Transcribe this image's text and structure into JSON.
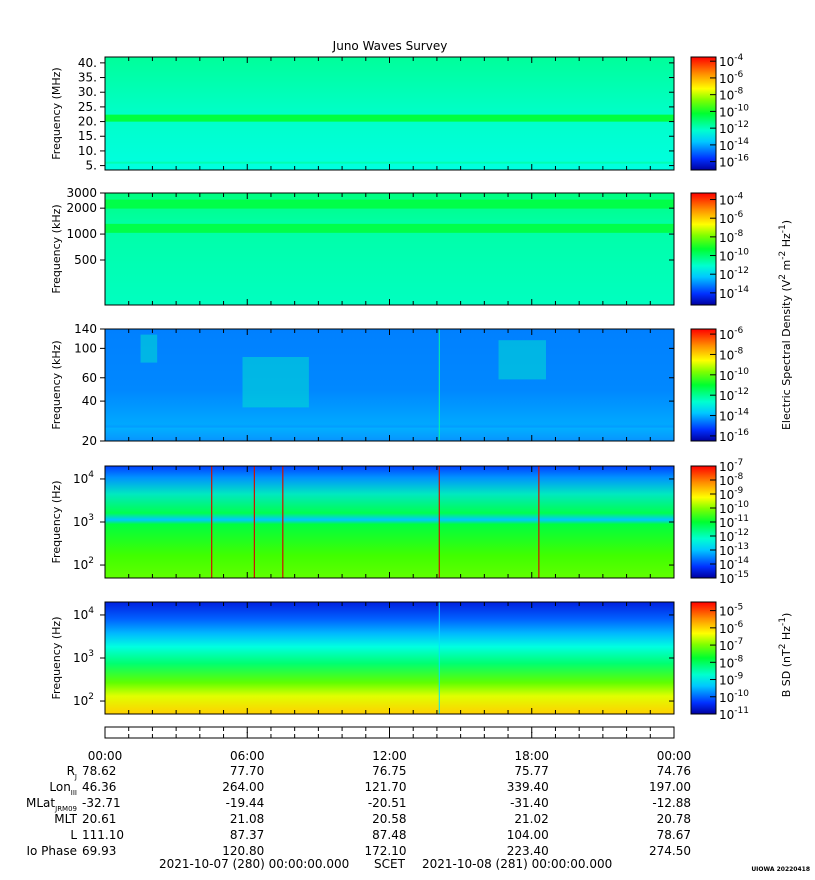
{
  "title": "Juno Waves Survey",
  "credit": "UIOWA 20220418",
  "chart_data": [
    {
      "type": "heatmap",
      "panel": "edens-high",
      "ylabel": "Frequency (MHz)",
      "yscale": "linear",
      "ylim": [
        3.5,
        42
      ],
      "yticks": [
        "40.",
        "35.",
        "30.",
        "25.",
        "20.",
        "15.",
        "10.",
        "5."
      ],
      "ytick_values": [
        40,
        35,
        30,
        25,
        20,
        15,
        10,
        5
      ],
      "colorbar_ticks": [
        "10-4",
        "10-6",
        "10-8",
        "10-10",
        "10-12",
        "10-14",
        "10-16"
      ],
      "colorbar_exponents": [
        -4,
        -6,
        -8,
        -10,
        -12,
        -14,
        -16
      ],
      "colorbar_range": [
        -17,
        -3.5
      ],
      "features": "uniform background near 10-13 with a band near 21 MHz near 10-11"
    },
    {
      "type": "heatmap",
      "panel": "edens-mid",
      "ylabel": "Frequency (kHz)",
      "yscale": "log",
      "ylim": [
        150,
        3000
      ],
      "yticks": [
        "3000",
        "2000",
        "1000",
        "500"
      ],
      "ytick_values": [
        3000,
        2000,
        1000,
        500
      ],
      "colorbar_ticks": [
        "10-4",
        "10-6",
        "10-8",
        "10-10",
        "10-12",
        "10-14"
      ],
      "colorbar_exponents": [
        -4,
        -6,
        -8,
        -10,
        -12,
        -14
      ],
      "colorbar_range": [
        -15.3,
        -3.3
      ],
      "features": "bands near 2200 kHz and 1150 kHz on a 10-12 background"
    },
    {
      "type": "heatmap",
      "panel": "elow-high",
      "ylabel": "Frequency (kHz)",
      "yscale": "log",
      "ylim": [
        20,
        140
      ],
      "yticks": [
        "140",
        "100",
        "60",
        "40",
        "20"
      ],
      "ytick_values": [
        140,
        100,
        60,
        40,
        20
      ],
      "colorbar_ticks": [
        "10-6",
        "10-8",
        "10-10",
        "10-12",
        "10-14",
        "10-16"
      ],
      "colorbar_exponents": [
        -6,
        -8,
        -10,
        -12,
        -14,
        -16
      ],
      "colorbar_range": [
        -16.5,
        -5.5
      ],
      "features": "background near 10-14; bursty emission near 06:00-08:30, 16:30-18:00; line near 14:00"
    },
    {
      "type": "heatmap",
      "panel": "elow-low",
      "ylabel": "Frequency (Hz)",
      "yscale": "log",
      "ylim": [
        50,
        20000
      ],
      "yticks": [
        "10",
        "10",
        "10"
      ],
      "ytick_exponents": [
        "4",
        "3",
        "2"
      ],
      "ytick_values": [
        10000,
        1000,
        100
      ],
      "colorbar_ticks": [
        "10-7",
        "10-8",
        "10-9",
        "10-10",
        "10-11",
        "10-12",
        "10-13",
        "10-14",
        "10-15"
      ],
      "colorbar_exponents": [
        -7,
        -8,
        -9,
        -10,
        -11,
        -12,
        -13,
        -14,
        -15
      ],
      "colorbar_range": [
        -15,
        -7
      ],
      "features": "green-yellow below ~1.2 kHz, blue hiss above; spikes near 04:30, 06:20, 07:30, 14:10, 18:20"
    },
    {
      "type": "heatmap",
      "panel": "bsd",
      "ylabel": "Frequency (Hz)",
      "yscale": "log",
      "ylim": [
        50,
        20000
      ],
      "yticks": [
        "10",
        "10",
        "10"
      ],
      "ytick_exponents": [
        "4",
        "3",
        "2"
      ],
      "ytick_values": [
        10000,
        1000,
        100
      ],
      "colorbar_label": "B SD (nT2 Hz-1)",
      "colorbar_ticks": [
        "10-5",
        "10-6",
        "10-7",
        "10-8",
        "10-9",
        "10-10",
        "10-11"
      ],
      "colorbar_exponents": [
        -5,
        -6,
        -7,
        -8,
        -9,
        -10,
        -11
      ],
      "colorbar_range": [
        -11,
        -4.5
      ],
      "features": "yellow below ~200 Hz grading to blue above ~5 kHz; line near 14:00"
    }
  ],
  "shared_colorbar_label": "Electric Spectral Density (V2 m-2 Hz-1)",
  "time_axis": {
    "labels": [
      "00:00",
      "06:00",
      "12:00",
      "18:00",
      "00:00"
    ],
    "hours": [
      0,
      6,
      12,
      18,
      24
    ],
    "minor_per_label": 4
  },
  "ephemeris": {
    "rows": [
      {
        "label": "R",
        "label_sub": "J",
        "values": [
          "78.62",
          "77.70",
          "76.75",
          "75.77",
          "74.76"
        ]
      },
      {
        "label": "Lon",
        "label_sub": "III",
        "values": [
          "46.36",
          "264.00",
          "121.70",
          "339.40",
          "197.00"
        ]
      },
      {
        "label": "MLat",
        "label_sub": "JRM09",
        "values": [
          "-32.71",
          "-19.44",
          "-20.51",
          "-31.40",
          "-12.88"
        ]
      },
      {
        "label": "MLT",
        "label_sub": "",
        "values": [
          "20.61",
          "21.08",
          "20.58",
          "21.02",
          "20.78"
        ]
      },
      {
        "label": "L",
        "label_sub": "",
        "values": [
          "111.10",
          "87.37",
          "87.48",
          "104.00",
          "78.67"
        ]
      },
      {
        "label": "Io Phase",
        "label_sub": "",
        "values": [
          "69.93",
          "120.80",
          "172.10",
          "223.40",
          "274.50"
        ]
      }
    ]
  },
  "footer": {
    "start": "2021-10-07 (280) 00:00:00.000",
    "scet": "SCET",
    "end": "2021-10-08 (281) 00:00:00.000"
  }
}
